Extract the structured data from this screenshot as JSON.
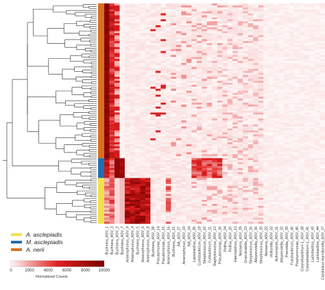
{
  "chart_data": {
    "type": "heatmap",
    "colormap": {
      "low": "#ffffff",
      "high": "#8b0000"
    },
    "colorbar": {
      "title": "Normalized Counts",
      "ticks": [
        0,
        2000,
        4000,
        6000,
        8000,
        10000
      ],
      "range": [
        0,
        10000
      ]
    },
    "groups": [
      {
        "name": "A. asclepiadis",
        "color": "#f2e14c",
        "rows": 23
      },
      {
        "name": "M. asclepiadis",
        "color": "#1f6fb2",
        "rows": 10
      },
      {
        "name": "A. nerii",
        "color": "#d9701e",
        "rows": 78
      }
    ],
    "group_strip_order_top_to_bottom": [
      "A. nerii",
      "M. asclepiadis",
      "A. asclepiadis"
    ],
    "columns": [
      "Buchnera_ASV_1",
      "Buchnera_ASV_3",
      "Buchnera_ASV_2",
      "Buchnera_ASV_7",
      "Arsenophonus_ASV_9",
      "Arsenophonus_ASV_4",
      "Buchnera_ASV_5",
      "Arsenophonus_ASV_6",
      "Arsenophonus_ASV_8",
      "Buchnera_ASV_28",
      "Pseudomonas_ASV_14",
      "Pseudomonas_ASV_15",
      "Arsenophonus_ASV_16",
      "Buchnera_ASV_21",
      "NA_ASV_27",
      "Arsenophonus_ASV_19",
      "NA_ASV_34",
      "Lactobacillus_ASV_25",
      "Curtobacterium_ASV_18",
      "Streptococcus_ASV_10",
      "Cutibacterium_ASV_11",
      "Staphylococcus_ASV_12",
      "Pseudomonas_ASV_30",
      "Rothia_ASV_24",
      "Rothia_ASV_20",
      "Haemophilus_ASV_13",
      "Neisseria_ASV_29",
      "Granulicatella_ASV_23",
      "Streptococcus_ASV_26",
      "Alloprevotella_ASV_36",
      "Streptococcus_ASV_35",
      "Neisseria_ASV_22",
      "Veillonella_ASV_33",
      "Actinomyces_ASV_31",
      "Alloprevotella_ASV_32",
      "Prevotella_ASV_39",
      "Fusobacterium_ASV_40",
      "Porphyromonas_ASV_40",
      "Corynebacterium_1_ASV_38",
      "Corynebacterium_1_ASV_41",
      "Lactobacillus_ASV_43",
      "Lactobacillus_ASV_44",
      "Candidatus_Hamiltonella_ASV_37"
    ]
  }
}
